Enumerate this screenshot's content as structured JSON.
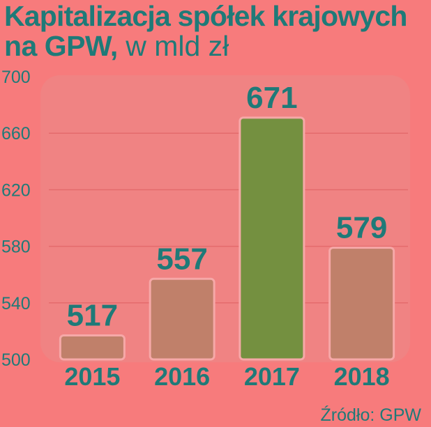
{
  "title": {
    "main": "Kapitalizacja spółek krajowych",
    "line2_bold": "na GPW,",
    "line2_unit": "w mld zł"
  },
  "source": "Źródło: GPW",
  "colors": {
    "background": "#f77b7c",
    "panel": "#f08383",
    "bar": "#c0806a",
    "bar_highlight": "#749040",
    "bar_border": "#f6a8a8",
    "text": "#1f7a78",
    "grid": "#e46b6c"
  },
  "chart_data": {
    "type": "bar",
    "title": "Kapitalizacja spółek krajowych na GPW, w mld zł",
    "categories": [
      "2015",
      "2016",
      "2017",
      "2018"
    ],
    "values": [
      517,
      557,
      671,
      579
    ],
    "value_labels": [
      "517",
      "557",
      "671",
      "579"
    ],
    "highlight_index": 2,
    "ylim": [
      500,
      700
    ],
    "yticks": [
      500,
      540,
      580,
      620,
      660,
      700
    ],
    "grid": true,
    "xlabel": "",
    "ylabel": ""
  }
}
